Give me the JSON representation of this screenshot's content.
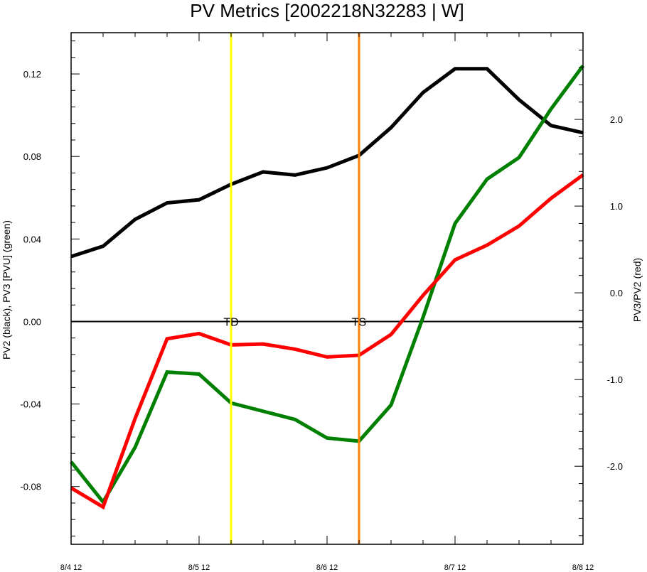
{
  "chart_data": {
    "type": "line",
    "title": "PV Metrics [2002218N32283 | W]",
    "ylabel_left": "PV2 (black), PV3 [PVU] (green)",
    "ylabel_right": "PV3/PV2 (red)",
    "xlim": [
      0,
      96
    ],
    "ylim_left": [
      -0.108,
      0.14
    ],
    "ylim_right": [
      -2.9,
      3.0
    ],
    "x_ticks": [
      {
        "x": 0,
        "label": "8/4 12"
      },
      {
        "x": 24,
        "label": "8/5 12"
      },
      {
        "x": 48,
        "label": "8/6 12"
      },
      {
        "x": 72,
        "label": "8/7 12"
      },
      {
        "x": 96,
        "label": "8/8 12"
      }
    ],
    "y_ticks_left": [
      {
        "value": -0.08,
        "label": "-0.08"
      },
      {
        "value": -0.04,
        "label": "-0.04"
      },
      {
        "value": 0.0,
        "label": "0.00"
      },
      {
        "value": 0.04,
        "label": "0.04"
      },
      {
        "value": 0.08,
        "label": "0.08"
      },
      {
        "value": 0.12,
        "label": "0.12"
      }
    ],
    "y_ticks_right": [
      {
        "value": -2.0,
        "label": "-2.0"
      },
      {
        "value": -1.0,
        "label": "-1.0"
      },
      {
        "value": 0.0,
        "label": "0.0"
      },
      {
        "value": 1.0,
        "label": "1.0"
      },
      {
        "value": 2.0,
        "label": "2.0"
      }
    ],
    "x": [
      0,
      6,
      12,
      18,
      24,
      30,
      36,
      42,
      48,
      54,
      60,
      66,
      72,
      78,
      84,
      90,
      96
    ],
    "series": [
      {
        "color": "#000000",
        "axis": "left",
        "values": [
          0.0315,
          0.0365,
          0.0495,
          0.0575,
          0.059,
          0.0665,
          0.0725,
          0.071,
          0.0745,
          0.0805,
          0.094,
          0.111,
          0.1225,
          0.1225,
          0.1075,
          0.095,
          0.0915
        ]
      },
      {
        "color": "#008000",
        "axis": "left",
        "values": [
          -0.068,
          -0.0875,
          -0.061,
          -0.0245,
          -0.0255,
          -0.0395,
          -0.0435,
          -0.0475,
          -0.0565,
          -0.058,
          -0.0405,
          0.002,
          0.0475,
          0.069,
          0.0795,
          0.103,
          0.124
        ]
      },
      {
        "color": "#ff0000",
        "axis": "right",
        "values": [
          -2.25,
          -2.47,
          -1.45,
          -0.53,
          -0.47,
          -0.6,
          -0.59,
          -0.65,
          -0.74,
          -0.72,
          -0.48,
          -0.03,
          0.38,
          0.55,
          0.77,
          1.09,
          1.36
        ]
      }
    ],
    "horizontal_line": {
      "axis": "left",
      "value": 0.0,
      "color": "#000000"
    },
    "vertical_markers": [
      {
        "x": 30,
        "color": "#ffff00",
        "label": "TD"
      },
      {
        "x": 54,
        "color": "#ff8000",
        "label": "TS"
      }
    ]
  }
}
